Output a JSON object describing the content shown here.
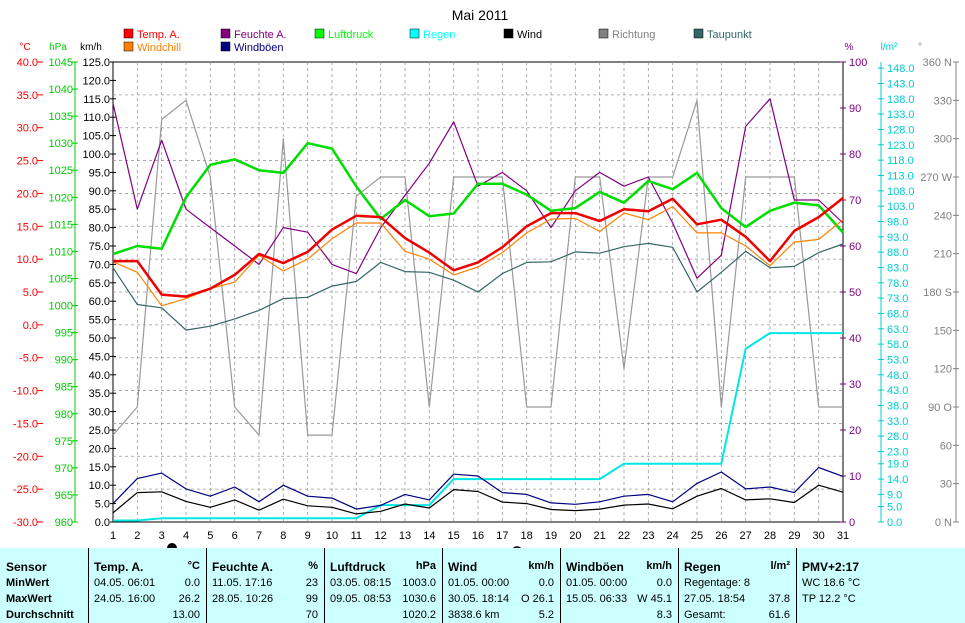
{
  "chart_data": {
    "type": "line",
    "title": "Mai 2011",
    "x": [
      1,
      2,
      3,
      4,
      5,
      6,
      7,
      8,
      9,
      10,
      11,
      12,
      13,
      14,
      15,
      16,
      17,
      18,
      19,
      20,
      21,
      22,
      23,
      24,
      25,
      26,
      27,
      28,
      29,
      30,
      31
    ],
    "x_ticks": [
      "1",
      "2",
      "3",
      "4",
      "5",
      "6",
      "7",
      "8",
      "9",
      "10",
      "11",
      "12",
      "13",
      "14",
      "15",
      "16",
      "17",
      "18",
      "19",
      "20",
      "21",
      "22",
      "23",
      "24",
      "25",
      "26",
      "27",
      "28",
      "29",
      "30",
      "31"
    ],
    "axes": [
      {
        "id": "temp",
        "unit": "°C",
        "range": [
          -30,
          40
        ],
        "step": 5,
        "ticks": [
          "40.0",
          "35.0",
          "30.0",
          "25.0",
          "20.0",
          "15.0",
          "10.0",
          "5.0",
          "0.0",
          "-5.0",
          "-10.0",
          "-15.0",
          "-20.0",
          "-25.0",
          "-30.0"
        ],
        "color": "#ff0000"
      },
      {
        "id": "press",
        "unit": "hPa",
        "range": [
          960,
          1045
        ],
        "step": 5,
        "ticks": [
          "1045",
          "1040",
          "1035",
          "1030",
          "1025",
          "1020",
          "1015",
          "1010",
          "1005",
          "1000",
          "995",
          "990",
          "985",
          "980",
          "975",
          "970",
          "965",
          "960"
        ],
        "color": "#00cc00"
      },
      {
        "id": "wind",
        "unit": "km/h",
        "range": [
          0,
          125
        ],
        "step": 5,
        "ticks": [
          "125.0",
          "120.0",
          "115.0",
          "110.0",
          "105.0",
          "100.0",
          "95.0",
          "90.0",
          "85.0",
          "80.0",
          "75.0",
          "70.0",
          "65.0",
          "60.0",
          "55.0",
          "50.0",
          "45.0",
          "40.0",
          "35.0",
          "30.0",
          "25.0",
          "20.0",
          "15.0",
          "10.0",
          "5.0",
          "0.0"
        ],
        "color": "#000000"
      },
      {
        "id": "hum",
        "unit": "%",
        "range": [
          0,
          100
        ],
        "step": 10,
        "ticks": [
          "100",
          "90",
          "80",
          "70",
          "60",
          "50",
          "40",
          "30",
          "20",
          "10",
          "0"
        ],
        "color": "#800080"
      },
      {
        "id": "rain",
        "unit": "l/m²",
        "range": [
          0,
          150
        ],
        "step": 5,
        "ticks": [
          "148.0",
          "143.0",
          "138.0",
          "133.0",
          "128.0",
          "123.0",
          "118.0",
          "113.0",
          "108.0",
          "103.0",
          "98.0",
          "93.0",
          "88.0",
          "83.0",
          "78.0",
          "73.0",
          "68.0",
          "63.0",
          "58.0",
          "53.0",
          "48.0",
          "43.0",
          "38.0",
          "33.0",
          "28.0",
          "23.0",
          "19.0",
          "14.0",
          "9.0",
          "5.0",
          "0.0"
        ],
        "color": "#00cccc"
      },
      {
        "id": "dir",
        "unit": "°",
        "range": [
          0,
          360
        ],
        "step": 30,
        "ticks": [
          "360 N",
          "330",
          "300",
          "270 W",
          "240",
          "210",
          "180 S",
          "150",
          "120",
          "90 O",
          "60",
          "30",
          "0 N"
        ],
        "color": "#808080"
      }
    ],
    "legend": [
      {
        "name": "Temp. A.",
        "color": "#ff0000"
      },
      {
        "name": "Windchill",
        "color": "#ff8000"
      },
      {
        "name": "Feuchte A.",
        "color": "#800080"
      },
      {
        "name": "Windböen",
        "color": "#000080"
      },
      {
        "name": "Luftdruck",
        "color": "#00ff00"
      },
      {
        "name": "Regen",
        "color": "#00ffff"
      },
      {
        "name": "Wind",
        "color": "#000000"
      },
      {
        "name": "Richtung",
        "color": "#808080"
      },
      {
        "name": "Taupunkt",
        "color": "#336666"
      }
    ],
    "series": [
      {
        "name": "Richtung",
        "axis": "dir",
        "color": "#999999",
        "width": 1.2,
        "values": [
          68,
          90,
          315,
          330,
          270,
          90,
          68,
          300,
          68,
          68,
          255,
          270,
          270,
          90,
          270,
          270,
          270,
          90,
          90,
          270,
          270,
          120,
          270,
          270,
          330,
          90,
          270,
          270,
          270,
          90,
          90
        ]
      },
      {
        "name": "Taupunkt",
        "axis": "temp",
        "color": "#336666",
        "width": 1.2,
        "values": [
          8.7,
          3.1,
          2.6,
          -0.8,
          -0.2,
          0.9,
          2.2,
          4.0,
          4.2,
          5.9,
          6.6,
          9.5,
          8.1,
          8.0,
          6.8,
          5.0,
          7.8,
          9.5,
          9.6,
          11.1,
          10.9,
          11.9,
          12.4,
          11.8,
          5.0,
          8.0,
          11.2,
          8.7,
          8.9,
          11.0,
          12.3
        ]
      },
      {
        "name": "Feuchte A.",
        "axis": "hum",
        "color": "#800080",
        "width": 1.2,
        "values": [
          91,
          68,
          83,
          68,
          64,
          60,
          56,
          64,
          63,
          56,
          54,
          64,
          71,
          78,
          87,
          73,
          76,
          72,
          64,
          72,
          76,
          73,
          75,
          65,
          53,
          58,
          86,
          92,
          70,
          70,
          65
        ]
      },
      {
        "name": "Regen",
        "axis": "rain",
        "color": "#00e6e6",
        "width": 2,
        "values": [
          0.5,
          0.5,
          1.2,
          1.2,
          1.2,
          1.2,
          1.2,
          1.2,
          1.2,
          1.2,
          1.2,
          5.5,
          5.5,
          5.5,
          14,
          14,
          14,
          14,
          14,
          14,
          14,
          19,
          19,
          19,
          19,
          19,
          56.5,
          61.6,
          61.6,
          61.6,
          61.6
        ]
      },
      {
        "name": "Windböen",
        "axis": "wind",
        "color": "#000080",
        "width": 1.2,
        "values": [
          5.0,
          11.8,
          13.3,
          9.0,
          7.0,
          9.5,
          5.5,
          10.0,
          7.0,
          6.5,
          3.5,
          4.5,
          7.5,
          6.0,
          13.0,
          12.5,
          8.0,
          7.5,
          5.2,
          4.8,
          5.5,
          7.0,
          7.5,
          5.5,
          10.5,
          13.6,
          9.0,
          9.5,
          8.0,
          14.8,
          12.4
        ]
      },
      {
        "name": "Wind",
        "axis": "wind",
        "color": "#000000",
        "width": 1.2,
        "values": [
          2.5,
          8.0,
          8.2,
          5.6,
          4.0,
          6.0,
          3.2,
          6.2,
          4.4,
          4.0,
          2.2,
          2.9,
          4.9,
          3.8,
          8.8,
          8.3,
          5.4,
          5.0,
          3.4,
          3.1,
          3.5,
          4.6,
          4.9,
          3.6,
          7.0,
          9.1,
          6.0,
          6.3,
          5.3,
          10.0,
          8.1
        ]
      },
      {
        "name": "Luftdruck",
        "axis": "press",
        "color": "#00dd00",
        "width": 2.5,
        "values": [
          1009.5,
          1011.0,
          1010.5,
          1020.0,
          1026.0,
          1027.0,
          1025.0,
          1024.5,
          1030.0,
          1029.0,
          1022.0,
          1016.0,
          1019.5,
          1016.5,
          1017.0,
          1022.5,
          1022.5,
          1020.5,
          1017.5,
          1018.0,
          1021.0,
          1019.0,
          1023.0,
          1021.5,
          1024.5,
          1018.0,
          1014.5,
          1017.5,
          1019.0,
          1018.5,
          1013.5
        ]
      },
      {
        "name": "Windchill",
        "axis": "temp",
        "color": "#ff8000",
        "width": 1.2,
        "values": [
          9.6,
          8.0,
          2.9,
          4.0,
          5.5,
          6.5,
          10.6,
          8.2,
          10.0,
          13.1,
          15.5,
          15.5,
          11.2,
          10.0,
          7.6,
          8.8,
          11.0,
          14.0,
          16.1,
          16.2,
          14.2,
          17.0,
          16.0,
          18.0,
          14.0,
          14.0,
          12.0,
          9.0,
          12.6,
          13.0,
          16.0
        ]
      },
      {
        "name": "Temp. A.",
        "axis": "temp",
        "color": "#ee0000",
        "width": 2.5,
        "values": [
          9.7,
          9.7,
          4.6,
          4.3,
          5.5,
          7.6,
          10.8,
          9.4,
          11.1,
          14.5,
          16.6,
          16.4,
          13.2,
          11.0,
          8.3,
          9.5,
          11.8,
          15.0,
          17.0,
          17.0,
          15.8,
          17.6,
          17.3,
          19.2,
          15.3,
          16.0,
          13.4,
          9.7,
          14.3,
          16.4,
          19.3
        ]
      }
    ],
    "grid": true
  },
  "stats": {
    "sensor": {
      "title": "Sensor",
      "rows": [
        "MinWert",
        "MaxWert",
        "Durchschnitt"
      ]
    },
    "temp": {
      "title": "Temp. A.",
      "unit": "°C",
      "rows": [
        [
          "04.05.  06:01",
          "0.0"
        ],
        [
          "24.05.  16:00",
          "26.2"
        ],
        [
          "",
          "13.00"
        ]
      ]
    },
    "hum": {
      "title": "Feuchte A.",
      "unit": "%",
      "rows": [
        [
          "11.05.  17:16",
          "23"
        ],
        [
          "28.05.  10:26",
          "99"
        ],
        [
          "",
          "70"
        ]
      ]
    },
    "press": {
      "title": "Luftdruck",
      "unit": "hPa",
      "rows": [
        [
          "03.05.  08:15",
          "1003.0"
        ],
        [
          "09.05.  08:53",
          "1030.6"
        ],
        [
          "",
          "1020.2"
        ]
      ]
    },
    "wind": {
      "title": "Wind",
      "unit": "km/h",
      "rows": [
        [
          "01.05.  00:00",
          "0.0"
        ],
        [
          "30.05.  18:14",
          "O  26.1"
        ],
        [
          "3838.6 km",
          "5.2"
        ]
      ]
    },
    "gust": {
      "title": "Windböen",
      "unit": "km/h",
      "rows": [
        [
          "01.05.  00:00",
          "0.0"
        ],
        [
          "15.05.  06:33",
          "W  45.1"
        ],
        [
          "",
          "8.3"
        ]
      ]
    },
    "rain": {
      "title": "Regen",
      "unit": "l/m²",
      "rows": [
        [
          "Regentage: 8",
          ""
        ],
        [
          "27.05.  18:54",
          "37.8"
        ],
        [
          "Gesamt:",
          "61.6"
        ]
      ]
    },
    "pmv": {
      "title": "PMV+2:17",
      "rows": [
        "WC 18.6 °C",
        "TP 12.2 °C"
      ]
    }
  }
}
